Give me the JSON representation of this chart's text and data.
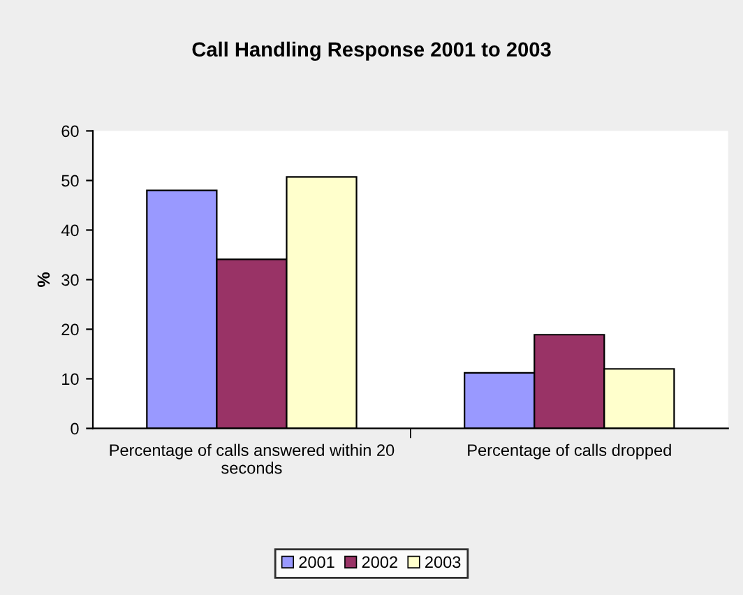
{
  "chart_data": {
    "type": "bar",
    "title": "Call Handling Response 2001 to 2003",
    "ylabel": "%",
    "categories": [
      "Percentage of calls answered within 20 seconds",
      "Percentage of calls dropped"
    ],
    "series": [
      {
        "name": "2001",
        "color": "#9999ff",
        "values": [
          48.0,
          11.2
        ]
      },
      {
        "name": "2002",
        "color": "#993366",
        "values": [
          34.1,
          18.9
        ]
      },
      {
        "name": "2003",
        "color": "#ffffcc",
        "values": [
          50.7,
          12.0
        ]
      }
    ],
    "ylim": [
      0,
      60
    ],
    "yticks": [
      0,
      10,
      20,
      30,
      40,
      50,
      60
    ],
    "grid": false,
    "legend": "bottom"
  }
}
